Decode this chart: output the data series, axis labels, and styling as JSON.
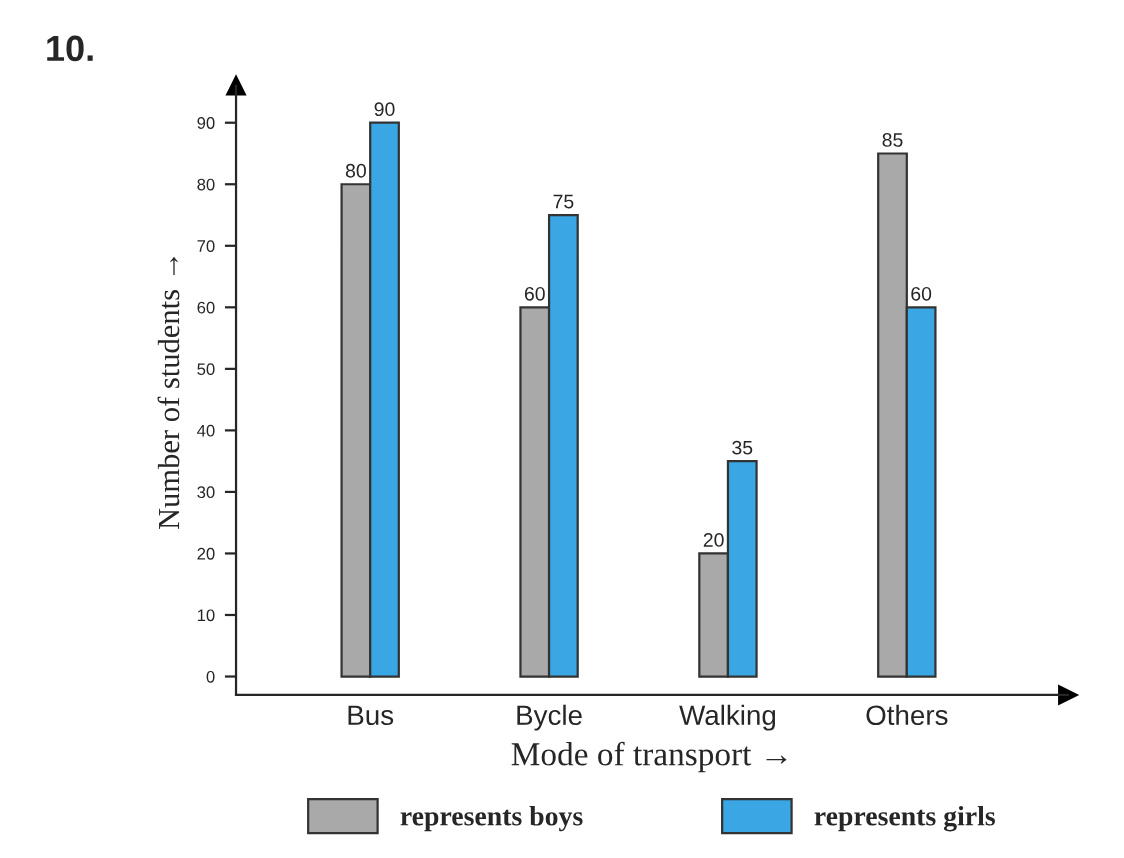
{
  "chart_data": {
    "type": "bar",
    "categories": [
      "Bus",
      "Bycle",
      "Walking",
      "Others"
    ],
    "series": [
      {
        "name": "represents boys",
        "color": "#a9a9a9",
        "values": [
          80,
          60,
          20,
          85
        ]
      },
      {
        "name": "represents girls",
        "color": "#3aa6e4",
        "values": [
          90,
          75,
          35,
          60
        ]
      }
    ],
    "xlabel": "Mode of transport →",
    "ylabel": "Number of students →",
    "ylim": [
      -3,
      96
    ],
    "yticks": [
      0,
      10,
      20,
      30,
      40,
      50,
      60,
      70,
      80,
      90
    ],
    "data_labels": true,
    "grid": false,
    "legend": "bottom",
    "annotations": [
      "10."
    ]
  }
}
